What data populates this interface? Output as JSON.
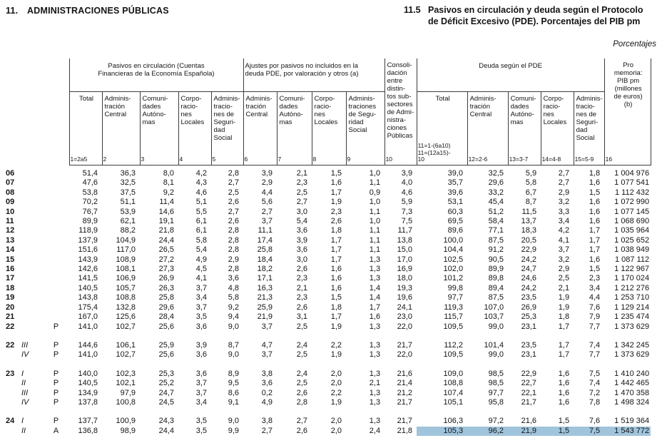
{
  "page": {
    "section_number": "11.",
    "section_title": "ADMINISTRACIONES PÚBLICAS",
    "table_number": "11.5",
    "table_title": "Pasivos en circulación y deuda según el Protocolo\nde Déficit Excesivo (PDE). Porcentajes del PIB pm",
    "units_note": "Porcentajes"
  },
  "table": {
    "groups": [
      "Pasivos en circulación (Cuentas\nFinancieras de la Economía Española)",
      "Ajustes por pasivos no incluidos en la\ndeuda PDE, por valoración y otros (a)",
      "Deuda según el PDE"
    ],
    "columns": [
      {
        "sub": "Total",
        "num": "1=2a5"
      },
      {
        "sub": "Adminis-\ntración\nCentral",
        "num": "2"
      },
      {
        "sub": "Comuni-\ndades\nAutóno-\nmas",
        "num": "3"
      },
      {
        "sub": "Corpo-\nracio-\nnes\nLocales",
        "num": "4"
      },
      {
        "sub": "Adminis-\ntracio-\nnes de\nSeguri-\ndad\nSocial",
        "num": "5"
      },
      {
        "sub": "Adminis-\ntración\nCentral",
        "num": "6"
      },
      {
        "sub": "Comuni-\ndades\nAutóno-\nmas",
        "num": "7"
      },
      {
        "sub": "Corpo-\nracio-\nnes\nLocales",
        "num": "8"
      },
      {
        "sub": "Adminis-\ntraciones\nde Segu-\nridad\nSocial",
        "num": "9"
      },
      {
        "sub": "Consoli-\ndación\nentre\ndistin-\ntos sub-\nsectores\nde Admi-\nnistra-\nciones\nPúblicas",
        "num": "10"
      },
      {
        "sub": "Total",
        "num": "11=1-(6a10)\n11=(12a15)-\n10"
      },
      {
        "sub": "Adminis-\ntración\nCentral",
        "num": "12=2-6"
      },
      {
        "sub": "Comuni-\ndades\nAutóno-\nmas",
        "num": "13=3-7"
      },
      {
        "sub": "Corpo-\nracio-\nnes\nLocales",
        "num": "14=4-8"
      },
      {
        "sub": "Adminis-\ntracio-\nnes de\nSeguri-\ndad\nSocial",
        "num": "15=5-9"
      },
      {
        "sub": "Pro\nmemoria:\nPIB pm\n(millones\nde euros)\n(b)",
        "num": "16"
      }
    ],
    "highlight_color": "#a0c4dc",
    "rows": [
      {
        "year": "06",
        "quarter": "",
        "marker": "",
        "values": [
          "51,4",
          "36,3",
          "8,0",
          "4,2",
          "2,8",
          "3,9",
          "2,1",
          "1,5",
          "1,0",
          "3,9",
          "39,0",
          "32,5",
          "5,9",
          "2,7",
          "1,8",
          "1 004 976"
        ]
      },
      {
        "year": "07",
        "quarter": "",
        "marker": "",
        "values": [
          "47,6",
          "32,5",
          "8,1",
          "4,3",
          "2,7",
          "2,9",
          "2,3",
          "1,6",
          "1,1",
          "4,0",
          "35,7",
          "29,6",
          "5,8",
          "2,7",
          "1,6",
          "1 077 541"
        ]
      },
      {
        "year": "08",
        "quarter": "",
        "marker": "",
        "values": [
          "53,8",
          "37,5",
          "9,2",
          "4,6",
          "2,5",
          "4,4",
          "2,5",
          "1,7",
          "0,9",
          "4,6",
          "39,6",
          "33,2",
          "6,7",
          "2,9",
          "1,5",
          "1 112 432"
        ]
      },
      {
        "year": "09",
        "quarter": "",
        "marker": "",
        "values": [
          "70,2",
          "51,1",
          "11,4",
          "5,1",
          "2,6",
          "5,6",
          "2,7",
          "1,9",
          "1,0",
          "5,9",
          "53,1",
          "45,4",
          "8,7",
          "3,2",
          "1,6",
          "1 072 990"
        ]
      },
      {
        "year": "10",
        "quarter": "",
        "marker": "",
        "values": [
          "76,7",
          "53,9",
          "14,6",
          "5,5",
          "2,7",
          "2,7",
          "3,0",
          "2,3",
          "1,1",
          "7,3",
          "60,3",
          "51,2",
          "11,5",
          "3,3",
          "1,6",
          "1 077 145"
        ]
      },
      {
        "year": "11",
        "quarter": "",
        "marker": "",
        "values": [
          "89,9",
          "62,1",
          "19,1",
          "6,1",
          "2,6",
          "3,7",
          "5,4",
          "2,6",
          "1,0",
          "7,5",
          "69,5",
          "58,4",
          "13,7",
          "3,4",
          "1,6",
          "1 068 690"
        ]
      },
      {
        "year": "12",
        "quarter": "",
        "marker": "",
        "values": [
          "118,9",
          "88,2",
          "21,8",
          "6,1",
          "2,8",
          "11,1",
          "3,6",
          "1,8",
          "1,1",
          "11,7",
          "89,6",
          "77,1",
          "18,3",
          "4,2",
          "1,7",
          "1 035 964"
        ]
      },
      {
        "year": "13",
        "quarter": "",
        "marker": "",
        "values": [
          "137,9",
          "104,9",
          "24,4",
          "5,8",
          "2,8",
          "17,4",
          "3,9",
          "1,7",
          "1,1",
          "13,8",
          "100,0",
          "87,5",
          "20,5",
          "4,1",
          "1,7",
          "1 025 652"
        ]
      },
      {
        "year": "14",
        "quarter": "",
        "marker": "",
        "values": [
          "151,6",
          "117,0",
          "26,5",
          "5,4",
          "2,8",
          "25,8",
          "3,6",
          "1,7",
          "1,1",
          "15,0",
          "104,4",
          "91,2",
          "22,9",
          "3,7",
          "1,7",
          "1 038 949"
        ]
      },
      {
        "year": "15",
        "quarter": "",
        "marker": "",
        "values": [
          "143,9",
          "108,9",
          "27,2",
          "4,9",
          "2,9",
          "18,4",
          "3,0",
          "1,7",
          "1,3",
          "17,0",
          "102,5",
          "90,5",
          "24,2",
          "3,2",
          "1,6",
          "1 087 112"
        ]
      },
      {
        "year": "16",
        "quarter": "",
        "marker": "",
        "values": [
          "142,6",
          "108,1",
          "27,3",
          "4,5",
          "2,8",
          "18,2",
          "2,6",
          "1,6",
          "1,3",
          "16,9",
          "102,0",
          "89,9",
          "24,7",
          "2,9",
          "1,5",
          "1 122 967"
        ]
      },
      {
        "year": "17",
        "quarter": "",
        "marker": "",
        "values": [
          "141,5",
          "106,9",
          "26,9",
          "4,1",
          "3,6",
          "17,1",
          "2,3",
          "1,6",
          "1,3",
          "18,0",
          "101,2",
          "89,8",
          "24,6",
          "2,5",
          "2,3",
          "1 170 024"
        ]
      },
      {
        "year": "18",
        "quarter": "",
        "marker": "",
        "values": [
          "140,5",
          "105,7",
          "26,3",
          "3,7",
          "4,8",
          "16,3",
          "2,1",
          "1,6",
          "1,4",
          "19,3",
          "99,8",
          "89,4",
          "24,2",
          "2,1",
          "3,4",
          "1 212 276"
        ]
      },
      {
        "year": "19",
        "quarter": "",
        "marker": "",
        "values": [
          "143,8",
          "108,8",
          "25,8",
          "3,4",
          "5,8",
          "21,3",
          "2,3",
          "1,5",
          "1,4",
          "19,6",
          "97,7",
          "87,5",
          "23,5",
          "1,9",
          "4,4",
          "1 253 710"
        ]
      },
      {
        "year": "20",
        "quarter": "",
        "marker": "",
        "values": [
          "175,4",
          "132,8",
          "29,6",
          "3,7",
          "9,2",
          "25,9",
          "2,6",
          "1,8",
          "1,7",
          "24,1",
          "119,3",
          "107,0",
          "26,9",
          "1,9",
          "7,6",
          "1 129 214"
        ]
      },
      {
        "year": "21",
        "quarter": "",
        "marker": "",
        "values": [
          "167,0",
          "125,6",
          "28,4",
          "3,5",
          "9,4",
          "21,9",
          "3,1",
          "1,7",
          "1,6",
          "23,0",
          "115,7",
          "103,7",
          "25,3",
          "1,8",
          "7,9",
          "1 235 474"
        ]
      },
      {
        "year": "22",
        "quarter": "",
        "marker": "P",
        "values": [
          "141,0",
          "102,7",
          "25,6",
          "3,6",
          "9,0",
          "3,7",
          "2,5",
          "1,9",
          "1,3",
          "22,0",
          "109,5",
          "99,0",
          "23,1",
          "1,7",
          "7,7",
          "1 373 629"
        ]
      },
      {
        "year": "22",
        "quarter": "III",
        "marker": "P",
        "gap": true,
        "values": [
          "144,6",
          "106,1",
          "25,9",
          "3,9",
          "8,7",
          "4,7",
          "2,4",
          "2,2",
          "1,3",
          "21,7",
          "112,2",
          "101,4",
          "23,5",
          "1,7",
          "7,4",
          "1 342 245"
        ]
      },
      {
        "year": "",
        "quarter": "IV",
        "marker": "P",
        "values": [
          "141,0",
          "102,7",
          "25,6",
          "3,6",
          "9,0",
          "3,7",
          "2,5",
          "1,9",
          "1,3",
          "22,0",
          "109,5",
          "99,0",
          "23,1",
          "1,7",
          "7,7",
          "1 373 629"
        ]
      },
      {
        "year": "23",
        "quarter": "I",
        "marker": "P",
        "gap": true,
        "values": [
          "140,0",
          "102,3",
          "25,3",
          "3,6",
          "8,9",
          "3,8",
          "2,4",
          "2,0",
          "1,3",
          "21,6",
          "109,0",
          "98,5",
          "22,9",
          "1,6",
          "7,5",
          "1 410 240"
        ]
      },
      {
        "year": "",
        "quarter": "II",
        "marker": "P",
        "values": [
          "140,5",
          "102,1",
          "25,2",
          "3,7",
          "9,5",
          "3,6",
          "2,5",
          "2,0",
          "2,1",
          "21,4",
          "108,8",
          "98,5",
          "22,7",
          "1,6",
          "7,4",
          "1 442 465"
        ]
      },
      {
        "year": "",
        "quarter": "III",
        "marker": "P",
        "values": [
          "134,9",
          "97,9",
          "24,7",
          "3,7",
          "8,6",
          "0,2",
          "2,6",
          "2,2",
          "1,3",
          "21,2",
          "107,4",
          "97,7",
          "22,1",
          "1,6",
          "7,2",
          "1 470 358"
        ]
      },
      {
        "year": "",
        "quarter": "IV",
        "marker": "P",
        "values": [
          "137,8",
          "100,8",
          "24,5",
          "3,4",
          "9,1",
          "4,9",
          "2,8",
          "1,9",
          "1,3",
          "21,7",
          "105,1",
          "95,8",
          "21,7",
          "1,6",
          "7,8",
          "1 498 324"
        ]
      },
      {
        "year": "24",
        "quarter": "I",
        "marker": "P",
        "gap": true,
        "values": [
          "137,7",
          "100,9",
          "24,3",
          "3,5",
          "9,0",
          "3,8",
          "2,7",
          "2,0",
          "1,3",
          "21,7",
          "106,3",
          "97,2",
          "21,6",
          "1,5",
          "7,6",
          "1 519 364"
        ]
      },
      {
        "year": "",
        "quarter": "II",
        "marker": "A",
        "highlight": true,
        "values": [
          "136,8",
          "98,9",
          "24,4",
          "3,5",
          "9,9",
          "2,7",
          "2,6",
          "2,0",
          "2,4",
          "21,8",
          "105,3",
          "96,2",
          "21,9",
          "1,5",
          "7,5",
          "1 543 772"
        ]
      }
    ]
  }
}
